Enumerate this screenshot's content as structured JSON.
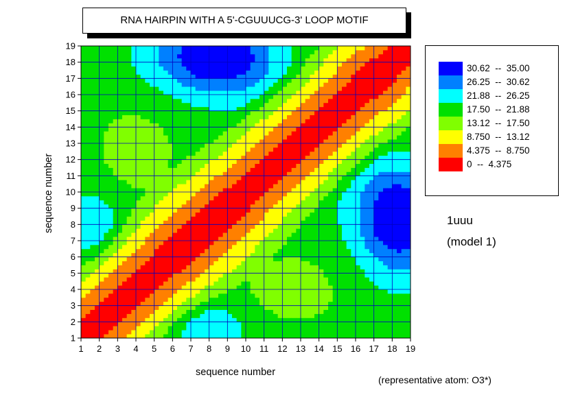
{
  "chart_data": {
    "type": "heatmap",
    "title": "RNA HAIRPIN WITH A 5'-CGUUUCG-3' LOOP MOTIF",
    "xlabel": "sequence number",
    "ylabel": "sequence number",
    "x": [
      1,
      2,
      3,
      4,
      5,
      6,
      7,
      8,
      9,
      10,
      11,
      12,
      13,
      14,
      15,
      16,
      17,
      18,
      19
    ],
    "y": [
      1,
      2,
      3,
      4,
      5,
      6,
      7,
      8,
      9,
      10,
      11,
      12,
      13,
      14,
      15,
      16,
      17,
      18,
      19
    ],
    "xlim": [
      1,
      19
    ],
    "ylim": [
      1,
      19
    ],
    "grid": true,
    "legend_position": "right",
    "levels": [
      {
        "label": "30.62  --  35.00",
        "min": 30.62,
        "max": 35.0,
        "color": "#0000ff"
      },
      {
        "label": "26.25  --  30.62",
        "min": 26.25,
        "max": 30.62,
        "color": "#0080ff"
      },
      {
        "label": "21.88  --  26.25",
        "min": 21.88,
        "max": 26.25,
        "color": "#00ffff"
      },
      {
        "label": "17.50  --  21.88",
        "min": 17.5,
        "max": 21.88,
        "color": "#00e000"
      },
      {
        "label": "13.12  --  17.50",
        "min": 13.12,
        "max": 17.5,
        "color": "#80ff00"
      },
      {
        "label": "8.750  --  13.12",
        "min": 8.75,
        "max": 13.12,
        "color": "#ffff00"
      },
      {
        "label": "4.375  --  8.750",
        "min": 4.375,
        "max": 8.75,
        "color": "#ff8000"
      },
      {
        "label": "0  --  4.375",
        "min": 0,
        "max": 4.375,
        "color": "#ff0000"
      }
    ],
    "grid_color": "#0000c0"
  },
  "annotations": {
    "structure_id": "1uuu",
    "model": "(model 1)",
    "atom_note": "(representative atom: O3*)"
  }
}
